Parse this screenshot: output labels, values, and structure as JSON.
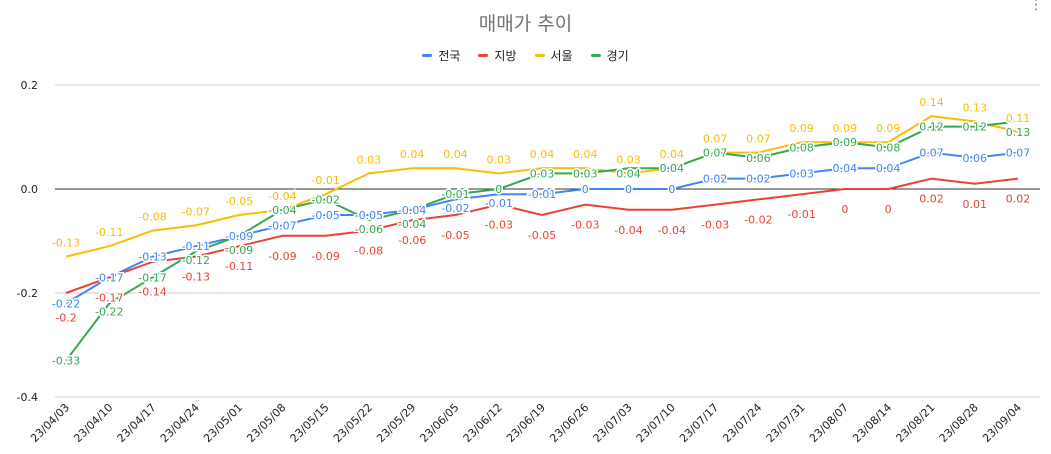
{
  "chart_data": {
    "type": "line",
    "title": "매매가 추이",
    "legend_position": "top",
    "grid": true,
    "ylim": [
      -0.4,
      0.2
    ],
    "yticks": [
      "0.2",
      "0.0",
      "-0.2",
      "-0.4"
    ],
    "categories": [
      "23/04/03",
      "23/04/10",
      "23/04/17",
      "23/04/24",
      "23/05/01",
      "23/05/08",
      "23/05/15",
      "23/05/22",
      "23/05/29",
      "23/06/05",
      "23/06/12",
      "23/06/19",
      "23/06/26",
      "23/07/03",
      "23/07/10",
      "23/07/17",
      "23/07/24",
      "23/07/31",
      "23/08/07",
      "23/08/14",
      "23/08/21",
      "23/08/28",
      "23/09/04"
    ],
    "series": [
      {
        "name": "전국",
        "color": "#4285f4",
        "values": [
          -0.22,
          -0.17,
          -0.13,
          -0.11,
          -0.09,
          -0.07,
          -0.05,
          -0.05,
          -0.04,
          -0.02,
          -0.01,
          -0.01,
          0,
          0,
          0,
          0.02,
          0.02,
          0.03,
          0.04,
          0.04,
          0.07,
          0.06,
          0.07
        ]
      },
      {
        "name": "지방",
        "color": "#ea4335",
        "values": [
          -0.2,
          -0.17,
          -0.14,
          -0.13,
          -0.11,
          -0.09,
          -0.09,
          -0.08,
          -0.06,
          -0.05,
          -0.03,
          -0.05,
          -0.03,
          -0.04,
          -0.04,
          -0.03,
          -0.02,
          -0.01,
          0,
          0,
          0.02,
          0.01,
          0.02
        ]
      },
      {
        "name": "서울",
        "color": "#fbbc04",
        "values": [
          -0.13,
          -0.11,
          -0.08,
          -0.07,
          -0.05,
          -0.04,
          -0.01,
          0.03,
          0.04,
          0.04,
          0.03,
          0.04,
          0.04,
          0.03,
          0.04,
          0.07,
          0.07,
          0.09,
          0.09,
          0.09,
          0.14,
          0.13,
          0.11
        ]
      },
      {
        "name": "경기",
        "color": "#34a853",
        "values": [
          -0.33,
          -0.22,
          -0.17,
          -0.12,
          -0.09,
          -0.04,
          -0.02,
          -0.06,
          -0.04,
          -0.01,
          0,
          0.03,
          0.03,
          0.04,
          0.04,
          0.07,
          0.06,
          0.08,
          0.09,
          0.08,
          0.12,
          0.12,
          0.13
        ]
      }
    ]
  }
}
